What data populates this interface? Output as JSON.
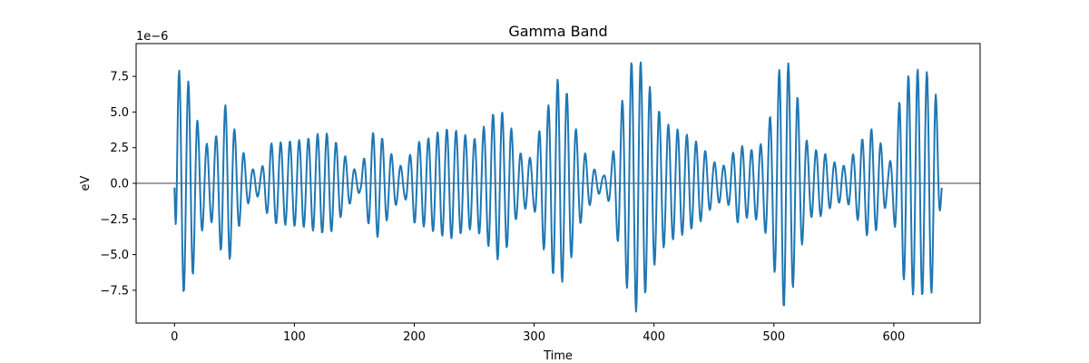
{
  "chart_data": {
    "type": "line",
    "title": "Gamma Band",
    "xlabel": "Time",
    "ylabel": "eV",
    "offset_label": "1e−6",
    "xlim": [
      -32,
      672
    ],
    "ylim": [
      -9.8e-06,
      9.8e-06
    ],
    "xticks": [
      0,
      100,
      200,
      300,
      400,
      500,
      600
    ],
    "yticks": [
      -7.5e-06,
      -5e-06,
      -2.5e-06,
      0,
      2.5e-06,
      5e-06,
      7.5e-06
    ],
    "ytick_labels": [
      "−7.5",
      "−5.0",
      "−2.5",
      "0.0",
      "2.5",
      "5.0",
      "7.5"
    ],
    "hline": 0,
    "grid": false,
    "series": [
      {
        "color": "#1f77b4",
        "signal": {
          "x_start": 0,
          "x_end": 640,
          "samples": 1281,
          "period": 7.7,
          "phase": -1.6,
          "envelope": [
            [
              0,
              0.3
            ],
            [
              2,
              7.8
            ],
            [
              5,
              8.0
            ],
            [
              10,
              7.4
            ],
            [
              15,
              6.6
            ],
            [
              20,
              4.0
            ],
            [
              25,
              2.9
            ],
            [
              30,
              2.6
            ],
            [
              35,
              3.4
            ],
            [
              40,
              5.2
            ],
            [
              45,
              5.8
            ],
            [
              50,
              3.8
            ],
            [
              55,
              2.8
            ],
            [
              60,
              1.6
            ],
            [
              65,
              1.0
            ],
            [
              72,
              0.9
            ],
            [
              80,
              2.8
            ],
            [
              90,
              2.9
            ],
            [
              100,
              3.0
            ],
            [
              110,
              3.1
            ],
            [
              120,
              3.5
            ],
            [
              130,
              3.5
            ],
            [
              140,
              2.2
            ],
            [
              150,
              1.0
            ],
            [
              155,
              0.6
            ],
            [
              160,
              2.5
            ],
            [
              168,
              4.0
            ],
            [
              175,
              2.9
            ],
            [
              185,
              1.5
            ],
            [
              192,
              1.0
            ],
            [
              200,
              2.8
            ],
            [
              210,
              3.1
            ],
            [
              220,
              3.6
            ],
            [
              230,
              3.9
            ],
            [
              240,
              3.5
            ],
            [
              250,
              3.1
            ],
            [
              260,
              4.2
            ],
            [
              270,
              5.4
            ],
            [
              280,
              4.2
            ],
            [
              285,
              2.5
            ],
            [
              292,
              1.8
            ],
            [
              300,
              1.8
            ],
            [
              305,
              4.0
            ],
            [
              312,
              5.5
            ],
            [
              320,
              7.4
            ],
            [
              328,
              6.3
            ],
            [
              335,
              3.8
            ],
            [
              340,
              2.5
            ],
            [
              350,
              1.0
            ],
            [
              358,
              0.5
            ],
            [
              365,
              1.8
            ],
            [
              372,
              5.2
            ],
            [
              380,
              8.4
            ],
            [
              385,
              9.0
            ],
            [
              390,
              8.4
            ],
            [
              395,
              7.2
            ],
            [
              400,
              5.8
            ],
            [
              410,
              4.2
            ],
            [
              420,
              3.8
            ],
            [
              430,
              3.3
            ],
            [
              440,
              2.6
            ],
            [
              450,
              1.5
            ],
            [
              460,
              1.2
            ],
            [
              470,
              2.8
            ],
            [
              480,
              2.3
            ],
            [
              490,
              2.8
            ],
            [
              495,
              4.0
            ],
            [
              500,
              6.0
            ],
            [
              505,
              8.2
            ],
            [
              510,
              9.0
            ],
            [
              515,
              7.6
            ],
            [
              520,
              6.0
            ],
            [
              525,
              3.6
            ],
            [
              530,
              2.4
            ],
            [
              540,
              2.3
            ],
            [
              550,
              1.5
            ],
            [
              560,
              1.2
            ],
            [
              570,
              2.6
            ],
            [
              580,
              4.0
            ],
            [
              590,
              2.7
            ],
            [
              595,
              1.0
            ],
            [
              600,
              2.5
            ],
            [
              605,
              6.0
            ],
            [
              612,
              7.6
            ],
            [
              620,
              8.0
            ],
            [
              628,
              7.8
            ],
            [
              634,
              7.6
            ],
            [
              637,
              4.0
            ],
            [
              640,
              0.4
            ]
          ]
        }
      }
    ]
  }
}
